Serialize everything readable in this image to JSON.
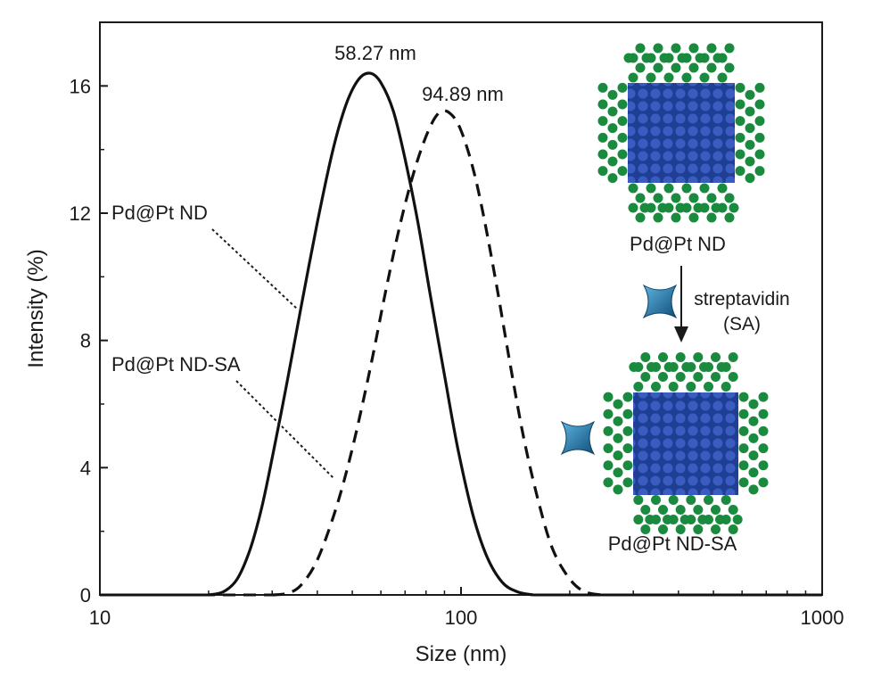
{
  "chart_data": {
    "type": "line",
    "xlabel": "Size (nm)",
    "ylabel": "Intensity (%)",
    "xscale": "log",
    "xlim": [
      10,
      1000
    ],
    "ylim": [
      0,
      18
    ],
    "xticks": [
      10,
      100,
      1000
    ],
    "xtick_labels": [
      "10",
      "100",
      "1000"
    ],
    "yticks": [
      0,
      4,
      8,
      12,
      16
    ],
    "ytick_labels": [
      "0",
      "4",
      "8",
      "12",
      "16"
    ],
    "grid": false,
    "series": [
      {
        "name": "Pd@Pt ND",
        "style": "solid",
        "peak_label": "58.27 nm",
        "x": [
          20,
          22,
          24,
          26,
          28,
          30,
          33,
          36,
          40,
          44,
          48,
          52,
          56,
          60,
          65,
          70,
          76,
          82,
          90,
          98,
          108,
          118,
          130,
          143,
          158
        ],
        "y": [
          0,
          0.1,
          0.5,
          1.4,
          2.7,
          4.3,
          6.7,
          9.0,
          11.7,
          13.9,
          15.4,
          16.2,
          16.4,
          16.1,
          15.2,
          13.7,
          11.7,
          9.5,
          6.9,
          4.6,
          2.5,
          1.2,
          0.4,
          0.1,
          0
        ]
      },
      {
        "name": "Pd@Pt ND-SA",
        "style": "dashed",
        "peak_label": "94.89 nm",
        "x": [
          30,
          33,
          36,
          40,
          45,
          50,
          56,
          62,
          68,
          75,
          82,
          88,
          94,
          100,
          108,
          116,
          126,
          138,
          150,
          165,
          180,
          200,
          220,
          245
        ],
        "y": [
          0,
          0.05,
          0.3,
          1.1,
          2.7,
          4.6,
          7.1,
          9.6,
          11.7,
          13.5,
          14.7,
          15.2,
          15.1,
          14.6,
          13.4,
          11.8,
          9.6,
          7.0,
          4.8,
          2.8,
          1.4,
          0.5,
          0.1,
          0
        ]
      }
    ]
  },
  "inset": {
    "top_label": "Pd@Pt ND",
    "bottom_label": "Pd@Pt ND-SA",
    "arrow_label_line1": "streptavidin",
    "arrow_label_line2": "(SA)",
    "core_color": "#1f3f94",
    "core_dot_color": "#3a5cc0",
    "shell_color": "#1a8a3e",
    "streptavidin_color": "#1f6fa0"
  }
}
